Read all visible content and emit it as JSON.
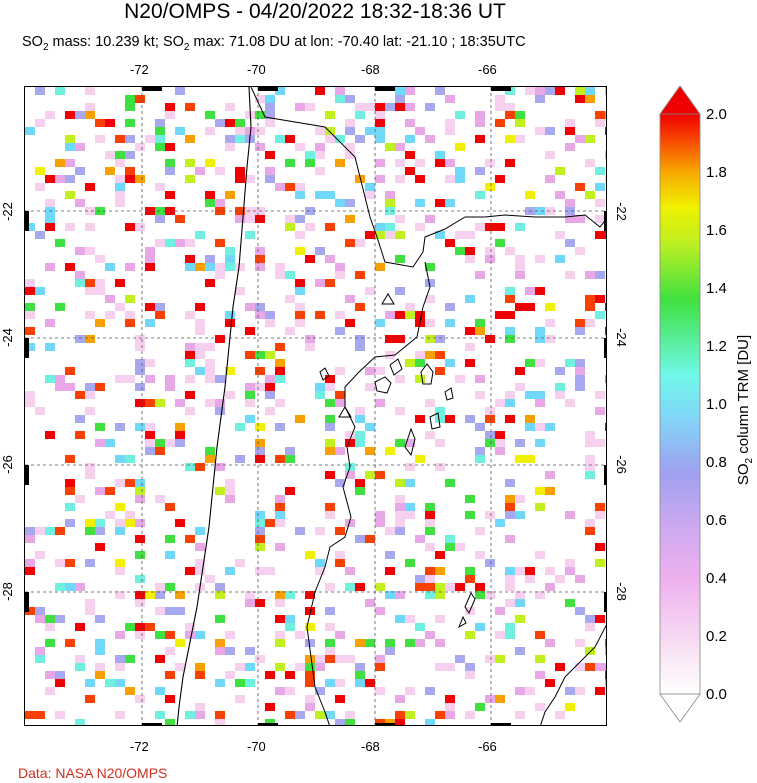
{
  "title": "N20/OMPS - 04/20/2022 18:32-18:36 UT",
  "subtitle": {
    "mass_prefix": "SO",
    "mass_sub": "2",
    "mass_text": " mass: 10.239 kt; SO",
    "max_sub": "2",
    "max_text": " max: 71.08 DU at lon: -70.40 lat: -21.10 ; 18:35UTC"
  },
  "map": {
    "lon_ticks": [
      "-72",
      "-70",
      "-68",
      "-66"
    ],
    "lat_ticks": [
      "-22",
      "-24",
      "-26",
      "-28"
    ],
    "lon_range": [
      -74.0,
      -64.0
    ],
    "lat_range": [
      -20.0,
      -30.0
    ],
    "grid": "dashed",
    "features": [
      "coastline",
      "national-borders",
      "lakes",
      "volcano-markers"
    ],
    "colormap": "rainbow",
    "pixel_pattern": "scattered random OMPS retrieval pixels"
  },
  "colorbar": {
    "labels": [
      "2.0",
      "1.8",
      "1.6",
      "1.4",
      "1.2",
      "1.0",
      "0.8",
      "0.6",
      "0.4",
      "0.2",
      "0.0"
    ],
    "title_prefix": "SO",
    "title_sub": "2",
    "title_rest": " column TRM [DU]",
    "min": 0.0,
    "max": 2.0
  },
  "credit": "Data: NASA N20/OMPS",
  "colors": {
    "credit": "#d03020",
    "scale": [
      "#ffffff",
      "#f7d0f0",
      "#e8a8e8",
      "#a8a8f0",
      "#70d8f8",
      "#70f0e0",
      "#40e040",
      "#c0f020",
      "#f0f000",
      "#f8a000",
      "#f84000",
      "#f00000"
    ]
  }
}
